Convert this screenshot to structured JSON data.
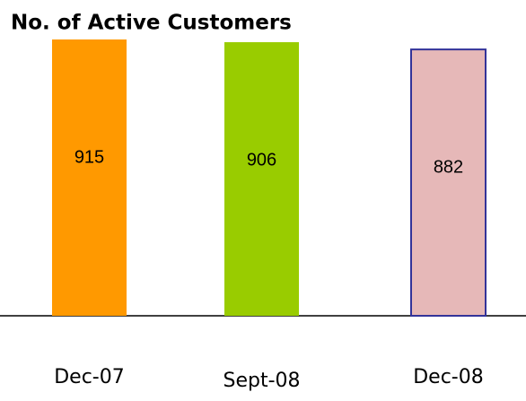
{
  "chart_data": {
    "type": "bar",
    "title": "No. of Active Customers",
    "categories": [
      "Dec-07",
      "Sept-08",
      "Dec-08"
    ],
    "values": [
      915,
      906,
      882
    ],
    "colors": [
      "#ff9900",
      "#99cc00",
      "#e6b8b8"
    ],
    "edge_colors": [
      null,
      null,
      "#333399"
    ]
  }
}
